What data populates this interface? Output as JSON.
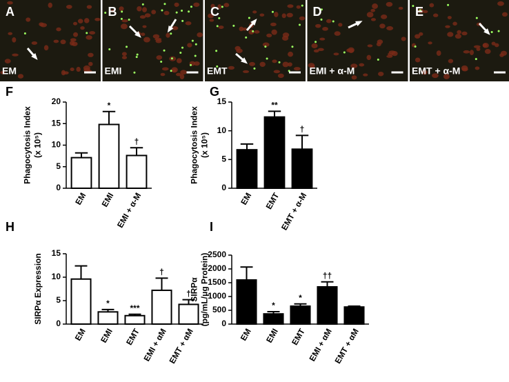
{
  "panels": [
    {
      "letter": "A",
      "caption": "EM"
    },
    {
      "letter": "B",
      "caption": "EMI"
    },
    {
      "letter": "C",
      "caption": "EMT"
    },
    {
      "letter": "D",
      "caption": "EMI + α-M"
    },
    {
      "letter": "E",
      "caption": "EMT + α-M"
    }
  ],
  "chart_data": [
    {
      "type": "bar",
      "panel_label": "F",
      "y_label": [
        "Phagocytosis Index",
        "(x 10⁵)"
      ],
      "categories": [
        "EM",
        "EMI",
        "EMI + α-M"
      ],
      "values": [
        7.1,
        14.8,
        7.6
      ],
      "errors": [
        1.1,
        3.0,
        1.8
      ],
      "annotations": [
        null,
        "*",
        "†"
      ],
      "color": "#ffffff",
      "edge": "#000000",
      "ylim": [
        0,
        20
      ],
      "yticks": [
        0,
        5,
        10,
        15,
        20
      ]
    },
    {
      "type": "bar",
      "panel_label": "G",
      "y_label": [
        "Phagocytosis Index",
        "(x 10⁵)"
      ],
      "categories": [
        "EM",
        "EMT",
        "EMT + α-M"
      ],
      "values": [
        6.7,
        12.4,
        6.8
      ],
      "errors": [
        1.0,
        1.0,
        2.4
      ],
      "annotations": [
        null,
        "**",
        "†"
      ],
      "color": "#000000",
      "edge": "#000000",
      "ylim": [
        0,
        15
      ],
      "yticks": [
        0,
        5,
        10,
        15
      ]
    },
    {
      "type": "bar",
      "panel_label": "H",
      "y_label": [
        "SIRPα Expression"
      ],
      "categories": [
        "EM",
        "EMI",
        "EMT",
        "EMI + αM",
        "EMT + αM"
      ],
      "values": [
        9.6,
        2.6,
        1.8,
        7.2,
        4.2
      ],
      "errors": [
        2.8,
        0.5,
        0.3,
        2.6,
        1.0
      ],
      "annotations": [
        null,
        "*",
        "***",
        "†",
        "†"
      ],
      "color": "#ffffff",
      "edge": "#000000",
      "ylim": [
        0,
        15
      ],
      "yticks": [
        0,
        5,
        10,
        15
      ]
    },
    {
      "type": "bar",
      "panel_label": "I",
      "y_label": [
        "SIRPα",
        "(pg/mL/μg Protein)"
      ],
      "categories": [
        "EM",
        "EMI",
        "EMT",
        "EMI + αM",
        "EMT + αM"
      ],
      "values": [
        1600,
        370,
        650,
        1350,
        620
      ],
      "errors": [
        470,
        80,
        80,
        180,
        30
      ],
      "annotations": [
        null,
        "*",
        "*",
        "††",
        null
      ],
      "color": "#000000",
      "edge": "#000000",
      "ylim": [
        0,
        2500
      ],
      "yticks": [
        0,
        500,
        1000,
        1500,
        2000,
        2500
      ]
    }
  ]
}
